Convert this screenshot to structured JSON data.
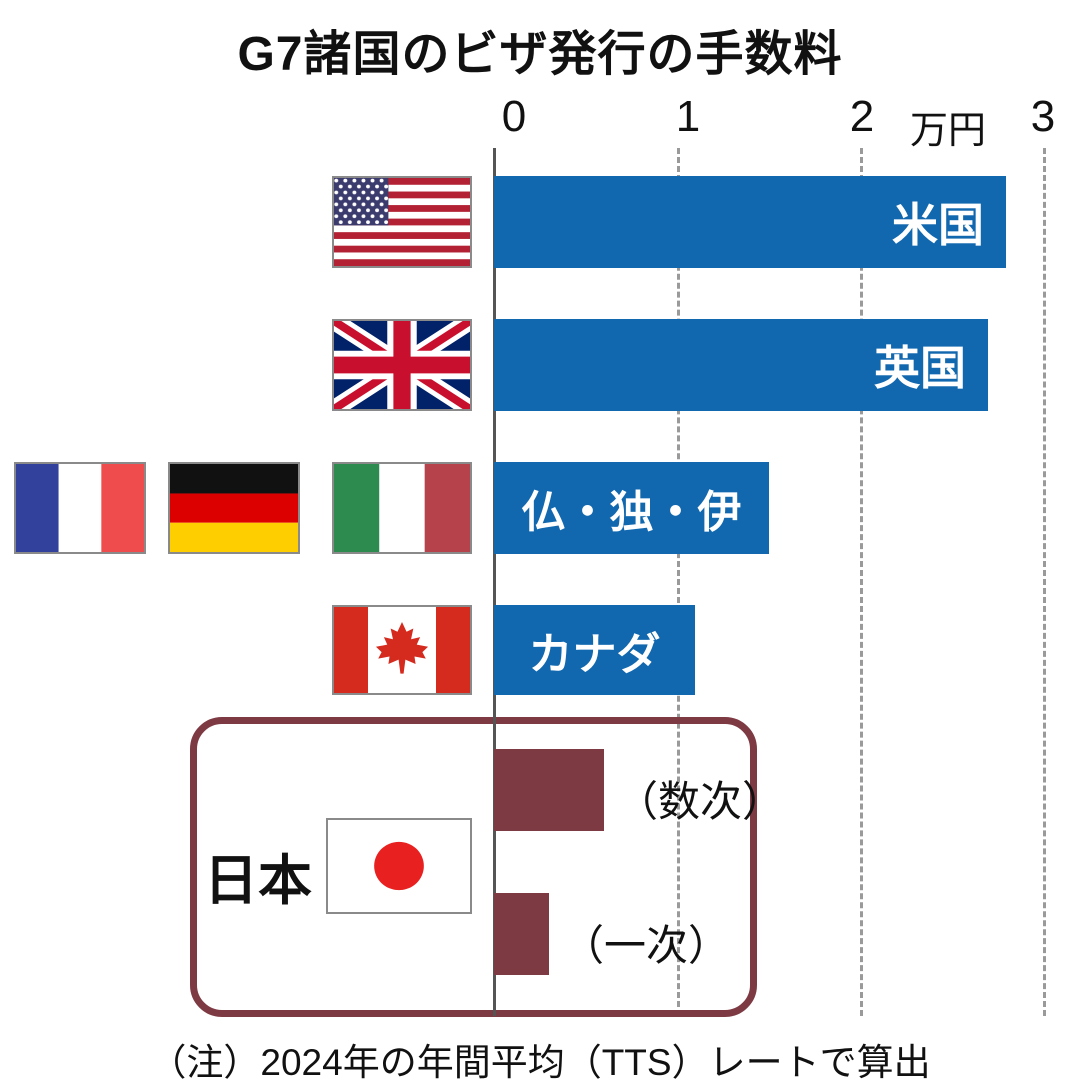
{
  "title": "G7諸国のビザ発行の手数料",
  "axis": {
    "ticks": [
      "0",
      "1",
      "2",
      "3"
    ],
    "unit_label": "万円"
  },
  "japan": {
    "group_label": "日本"
  },
  "note": "（注）2024年の年間平均（TTS）レートで算出",
  "colors": {
    "bar_blue": "#1168af",
    "bar_maroon": "#7d3a43",
    "japan_box_border": "#7d3a43"
  },
  "chart_data": {
    "type": "bar",
    "orientation": "horizontal",
    "title": "G7諸国のビザ発行の手数料",
    "xlabel": "",
    "unit": "万円",
    "xlim": [
      0,
      3
    ],
    "gridlines": [
      1,
      2,
      3
    ],
    "bars": [
      {
        "label": "米国",
        "country": "USA",
        "value": 2.8,
        "color": "#1168af"
      },
      {
        "label": "英国",
        "country": "UK",
        "value": 2.7,
        "color": "#1168af"
      },
      {
        "label": "仏・独・伊",
        "country": "France / Germany / Italy",
        "value": 1.5,
        "color": "#1168af"
      },
      {
        "label": "カナダ",
        "country": "Canada",
        "value": 1.1,
        "color": "#1168af"
      },
      {
        "label": "（数次）",
        "country": "Japan (multiple-entry)",
        "group": "日本",
        "value": 0.6,
        "color": "#7d3a43"
      },
      {
        "label": "（一次）",
        "country": "Japan (single-entry)",
        "group": "日本",
        "value": 0.3,
        "color": "#7d3a43"
      }
    ],
    "note": "（注）2024年の年間平均（TTS）レートで算出"
  }
}
